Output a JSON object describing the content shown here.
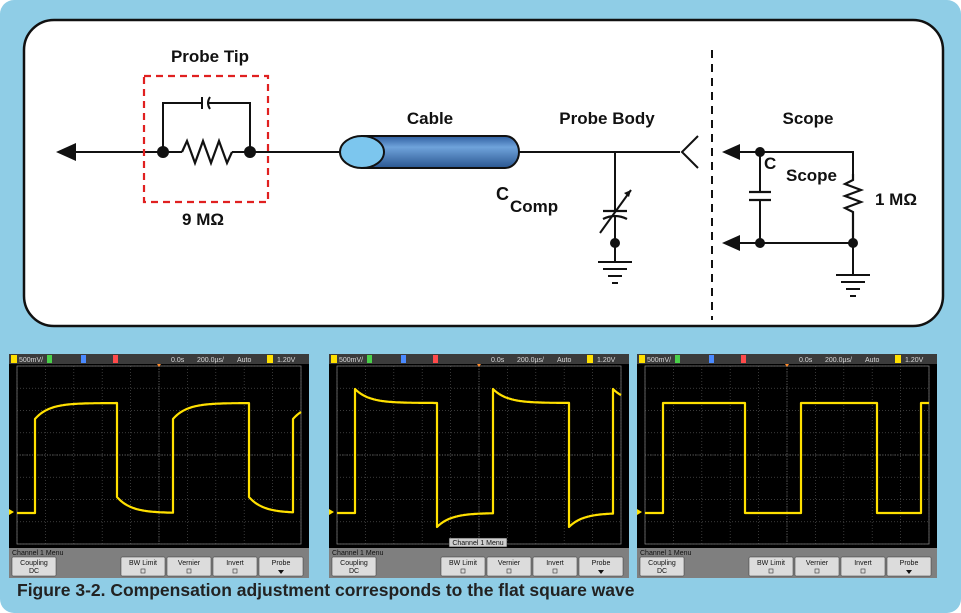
{
  "schematic": {
    "probe_tip_label": "Probe Tip",
    "tip_resistor_label": "9 MΩ",
    "cable_label": "Cable",
    "probe_body_label": "Probe Body",
    "comp_cap_label_c": "C",
    "comp_cap_label_sub": "Comp",
    "scope_label": "Scope",
    "scope_cap_label_c": "C",
    "scope_cap_label_sub": "Scope",
    "scope_resistor_label": "1 MΩ"
  },
  "screens": [
    {
      "id": "undercompensated",
      "status": {
        "ch_scale": "500mV/",
        "delay": "0.0s",
        "timebase": "200.0µs/",
        "trigger_mode": "Auto",
        "trigger_level": "1.20V"
      },
      "menu_title": "Channel 1  Menu",
      "softkeys": {
        "coupling": "Coupling",
        "coupling_value": "DC",
        "bw_limit": "BW Limit",
        "vernier": "Vernier",
        "invert": "Invert",
        "probe": "Probe"
      },
      "popup": ""
    },
    {
      "id": "overcompensated",
      "status": {
        "ch_scale": "500mV/",
        "delay": "0.0s",
        "timebase": "200.0µs/",
        "trigger_mode": "Auto",
        "trigger_level": "1.20V"
      },
      "menu_title": "Channel 1  Menu",
      "softkeys": {
        "coupling": "Coupling",
        "coupling_value": "DC",
        "bw_limit": "BW Limit",
        "vernier": "Vernier",
        "invert": "Invert",
        "probe": "Probe"
      },
      "popup": "Channel 1  Menu"
    },
    {
      "id": "compensated",
      "status": {
        "ch_scale": "500mV/",
        "delay": "0.0s",
        "timebase": "200.0µs/",
        "trigger_mode": "Auto",
        "trigger_level": "1.20V"
      },
      "menu_title": "Channel 1  Menu",
      "softkeys": {
        "coupling": "Coupling",
        "coupling_value": "DC",
        "bw_limit": "BW Limit",
        "vernier": "Vernier",
        "invert": "Invert",
        "probe": "Probe"
      },
      "popup": ""
    }
  ],
  "caption": "Figure 3-2. Compensation adjustment corresponds to the flat square wave",
  "colors": {
    "frame": "#8fcde6",
    "trace": "#ffe000",
    "grid": "#5a5a5a",
    "probe_tip_box": "#e02020",
    "cable": "#4a86c8"
  }
}
